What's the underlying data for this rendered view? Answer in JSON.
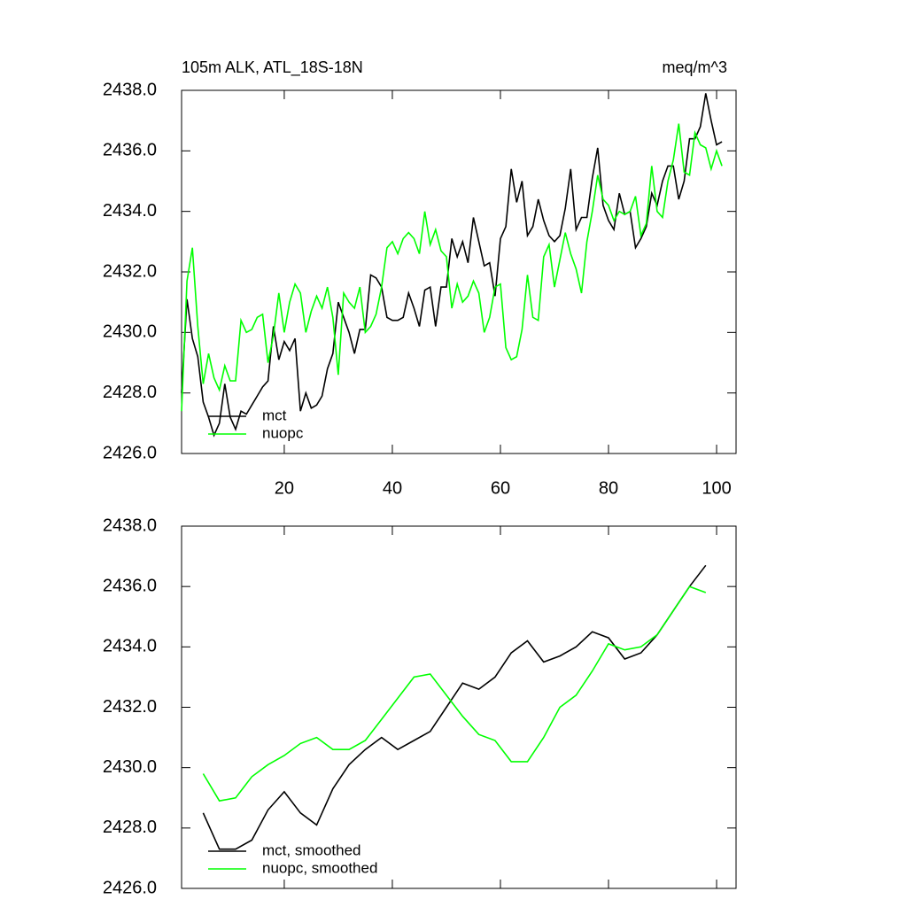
{
  "chart_data": [
    {
      "type": "line",
      "left_title": "105m ALK, ATL_18S-18N",
      "right_title": "meq/m^3",
      "x": [
        1,
        2,
        3,
        4,
        5,
        6,
        7,
        8,
        9,
        10,
        11,
        12,
        13,
        14,
        15,
        16,
        17,
        18,
        19,
        20,
        21,
        22,
        23,
        24,
        25,
        26,
        27,
        28,
        29,
        30,
        31,
        32,
        33,
        34,
        35,
        36,
        37,
        38,
        39,
        40,
        41,
        42,
        43,
        44,
        45,
        46,
        47,
        48,
        49,
        50,
        51,
        52,
        53,
        54,
        55,
        56,
        57,
        58,
        59,
        60,
        61,
        62,
        63,
        64,
        65,
        66,
        67,
        68,
        69,
        70,
        71,
        72,
        73,
        74,
        75,
        76,
        77,
        78,
        79,
        80,
        81,
        82,
        83,
        84,
        85,
        86,
        87,
        88,
        89,
        90,
        91,
        92,
        93,
        94,
        95,
        96,
        97,
        98,
        99,
        100,
        101
      ],
      "series": [
        {
          "name": "mct",
          "color": "#000000",
          "values": [
            2428.0,
            2431.1,
            2429.8,
            2429.2,
            2427.7,
            2427.2,
            2426.6,
            2427.0,
            2428.3,
            2427.2,
            2426.8,
            2427.4,
            2427.3,
            2427.6,
            2427.9,
            2428.2,
            2428.4,
            2430.2,
            2429.1,
            2429.7,
            2429.4,
            2429.8,
            2427.4,
            2428.0,
            2427.5,
            2427.6,
            2427.9,
            2428.8,
            2429.3,
            2431.0,
            2430.5,
            2430.0,
            2429.3,
            2430.1,
            2430.1,
            2431.9,
            2431.8,
            2431.5,
            2430.5,
            2430.4,
            2430.4,
            2430.5,
            2431.3,
            2430.8,
            2430.2,
            2431.4,
            2431.5,
            2430.2,
            2431.5,
            2431.5,
            2433.1,
            2432.5,
            2433.0,
            2432.3,
            2433.8,
            2433.0,
            2432.2,
            2432.3,
            2431.2,
            2433.1,
            2433.5,
            2435.4,
            2434.3,
            2435.0,
            2433.2,
            2433.5,
            2434.4,
            2433.7,
            2433.2,
            2433.0,
            2433.2,
            2434.1,
            2435.4,
            2433.4,
            2433.8,
            2433.8,
            2435.1,
            2436.1,
            2434.2,
            2433.7,
            2433.4,
            2434.6,
            2433.9,
            2434.0,
            2432.8,
            2433.1,
            2433.5,
            2434.6,
            2434.2,
            2435.0,
            2435.5,
            2435.5,
            2434.4,
            2435.0,
            2436.4,
            2436.4,
            2436.8,
            2437.9,
            2437.0,
            2436.2,
            2436.3
          ]
        },
        {
          "name": "nuopc",
          "color": "#00ff00",
          "values": [
            2427.4,
            2431.7,
            2432.8,
            2430.2,
            2428.3,
            2429.3,
            2428.5,
            2428.1,
            2428.9,
            2428.4,
            2428.4,
            2430.4,
            2430.0,
            2430.1,
            2430.5,
            2430.6,
            2429.0,
            2429.9,
            2431.3,
            2430.0,
            2431.0,
            2431.6,
            2431.3,
            2430.0,
            2430.7,
            2431.2,
            2430.8,
            2431.5,
            2430.5,
            2428.6,
            2431.3,
            2431.0,
            2430.8,
            2431.5,
            2430.0,
            2430.2,
            2430.6,
            2431.5,
            2432.8,
            2433.0,
            2432.6,
            2433.1,
            2433.3,
            2433.1,
            2432.6,
            2434.0,
            2432.9,
            2433.4,
            2432.7,
            2432.5,
            2430.8,
            2431.6,
            2431.0,
            2431.2,
            2431.7,
            2431.3,
            2430.0,
            2430.5,
            2431.5,
            2431.6,
            2429.5,
            2429.1,
            2429.2,
            2430.1,
            2431.9,
            2430.5,
            2430.4,
            2432.5,
            2432.9,
            2431.5,
            2432.4,
            2433.3,
            2432.6,
            2432.1,
            2431.3,
            2433.0,
            2434.0,
            2435.2,
            2434.4,
            2434.2,
            2433.7,
            2434.0,
            2433.9,
            2434.0,
            2434.5,
            2433.2,
            2433.6,
            2435.5,
            2434.0,
            2433.8,
            2435.0,
            2435.7,
            2436.9,
            2435.3,
            2435.2,
            2436.6,
            2436.2,
            2436.1,
            2435.4,
            2436.0,
            2435.5
          ]
        }
      ],
      "xlim": [
        1,
        103.6
      ],
      "xticks": [
        20,
        40,
        60,
        80,
        100
      ],
      "show_xtick_labels": true,
      "ylim": [
        2426,
        2438
      ],
      "yticks": [
        {
          "value": 2426,
          "label": "2426.0"
        },
        {
          "value": 2428,
          "label": "2428.0"
        },
        {
          "value": 2430,
          "label": "2430.0"
        },
        {
          "value": 2432,
          "label": "2432.0"
        },
        {
          "value": 2434,
          "label": "2434.0"
        },
        {
          "value": 2436,
          "label": "2436.0"
        },
        {
          "value": 2438,
          "label": "2438.0"
        }
      ],
      "legend": "lower left"
    },
    {
      "type": "line",
      "x": [
        5,
        8,
        11,
        14,
        17,
        20,
        23,
        26,
        29,
        32,
        35,
        38,
        41,
        44,
        47,
        50,
        53,
        56,
        59,
        62,
        65,
        68,
        71,
        74,
        77,
        80,
        83,
        86,
        89,
        92,
        95,
        98
      ],
      "series": [
        {
          "name": "mct, smoothed",
          "color": "#000000",
          "values": [
            2428.5,
            2427.3,
            2427.3,
            2427.6,
            2428.6,
            2429.2,
            2428.5,
            2428.1,
            2429.3,
            2430.1,
            2430.6,
            2431.0,
            2430.6,
            2430.9,
            2431.2,
            2432.0,
            2432.8,
            2432.6,
            2433.0,
            2433.8,
            2434.2,
            2433.5,
            2433.7,
            2434.0,
            2434.5,
            2434.3,
            2433.6,
            2433.8,
            2434.4,
            2435.2,
            2436.0,
            2436.7
          ]
        },
        {
          "name": "nuopc, smoothed",
          "color": "#00ff00",
          "values": [
            2429.8,
            2428.9,
            2429.0,
            2429.7,
            2430.1,
            2430.4,
            2430.8,
            2431.0,
            2430.6,
            2430.6,
            2430.9,
            2431.6,
            2432.3,
            2433.0,
            2433.1,
            2432.4,
            2431.7,
            2431.1,
            2430.9,
            2430.2,
            2430.2,
            2431.0,
            2432.0,
            2432.4,
            2433.2,
            2434.1,
            2433.9,
            2434.0,
            2434.4,
            2435.2,
            2436.0,
            2435.8
          ]
        }
      ],
      "xlim": [
        1,
        103.6
      ],
      "xticks": [
        20,
        40,
        60,
        80,
        100
      ],
      "show_xtick_labels": false,
      "ylim": [
        2426,
        2438
      ],
      "yticks": [
        {
          "value": 2426,
          "label": "2426.0"
        },
        {
          "value": 2428,
          "label": "2428.0"
        },
        {
          "value": 2430,
          "label": "2430.0"
        },
        {
          "value": 2432,
          "label": "2432.0"
        },
        {
          "value": 2434,
          "label": "2434.0"
        },
        {
          "value": 2436,
          "label": "2436.0"
        },
        {
          "value": 2438,
          "label": "2438.0"
        }
      ],
      "legend": "lower left"
    }
  ]
}
